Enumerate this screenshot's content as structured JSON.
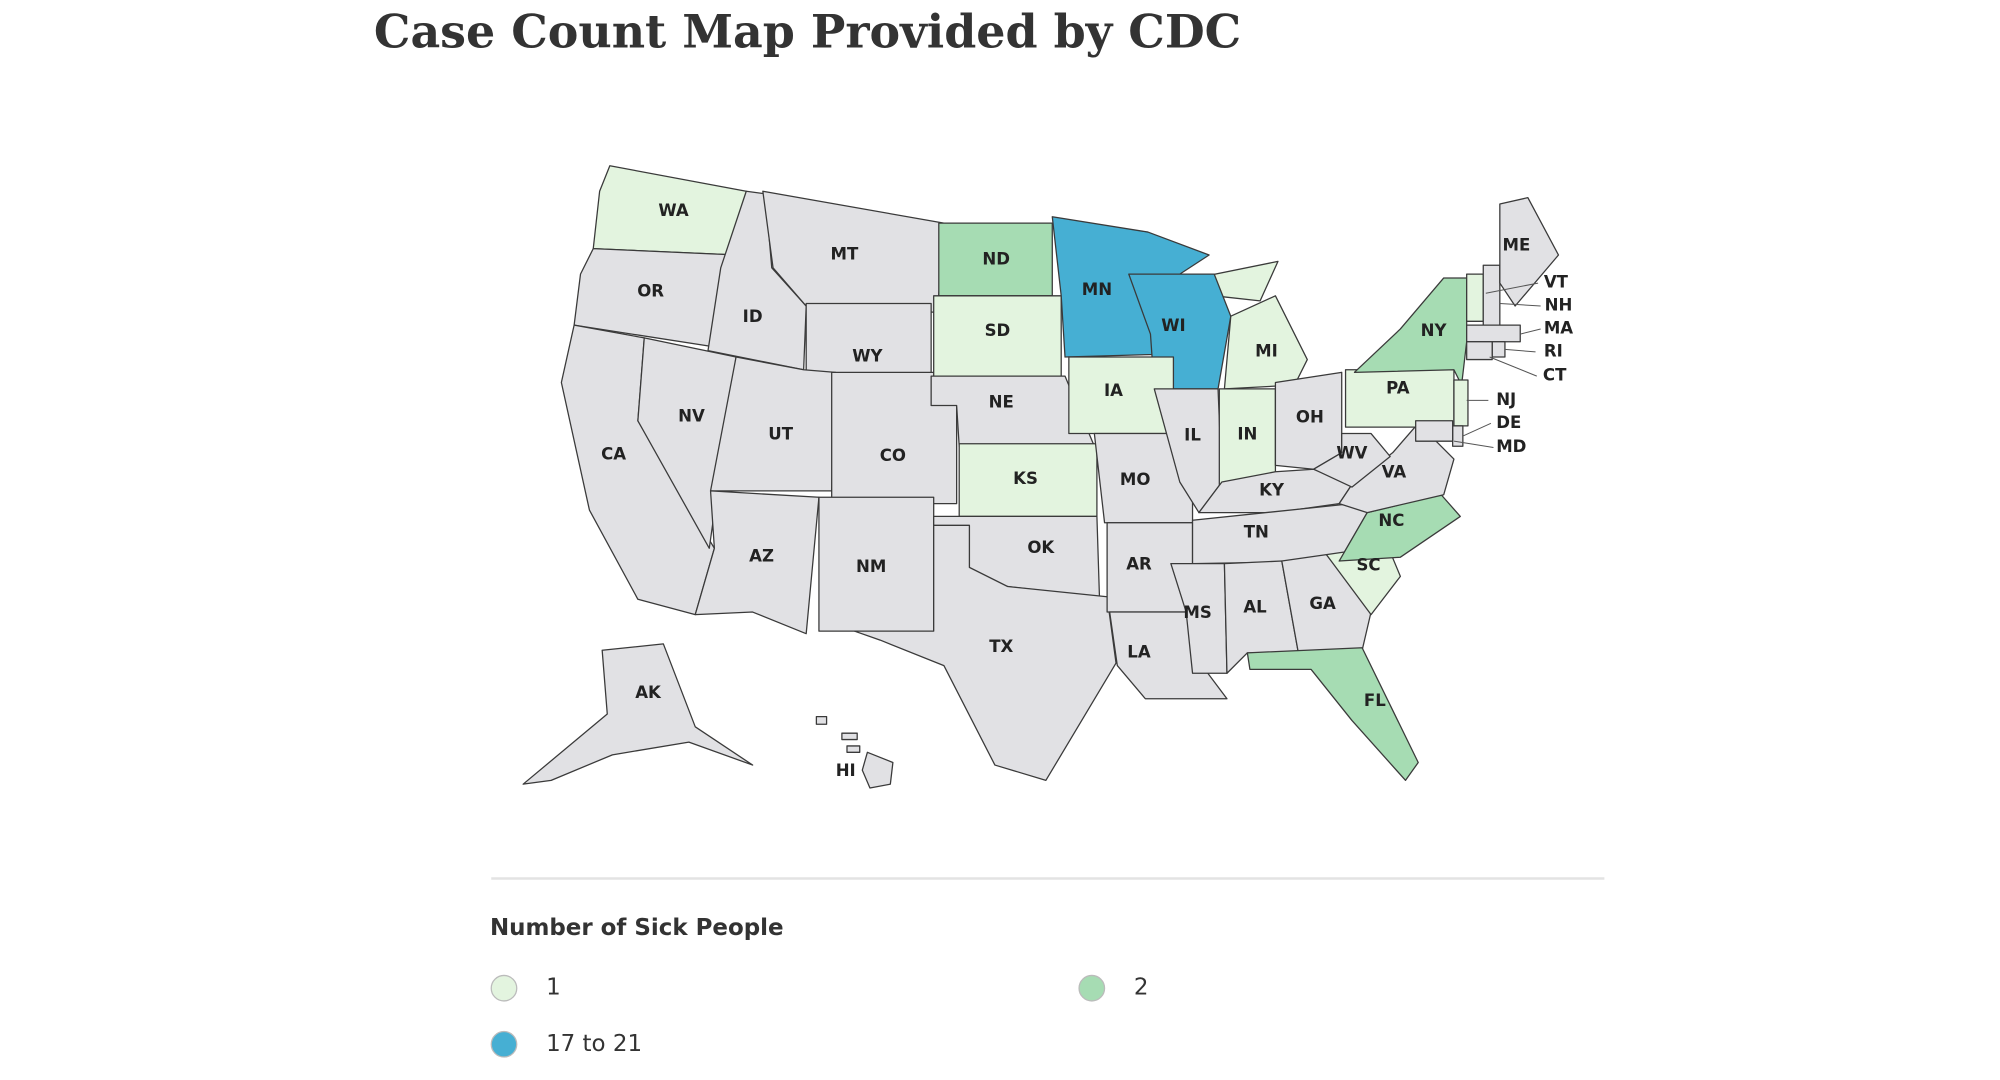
{
  "header": {
    "title": "Case Count Map Provided by CDC"
  },
  "map": {
    "no_data_color": "#e1e1e4",
    "states": [
      "WA",
      "OR",
      "CA",
      "NV",
      "ID",
      "MT",
      "WY",
      "UT",
      "CO",
      "AZ",
      "NM",
      "ND",
      "SD",
      "NE",
      "KS",
      "OK",
      "TX",
      "MN",
      "WI",
      "IA",
      "MO",
      "AR",
      "LA",
      "IL",
      "MI",
      "IN",
      "OH",
      "KY",
      "TN",
      "MS",
      "AL",
      "GA",
      "FL",
      "SC",
      "NC",
      "VA",
      "WV",
      "PA",
      "NY",
      "VT",
      "NH",
      "ME",
      "MA",
      "RI",
      "CT",
      "NJ",
      "DE",
      "MD",
      "AK",
      "HI"
    ]
  },
  "legend": {
    "title": "Number of Sick People",
    "items": [
      {
        "label": "1",
        "color": "#e3f4df",
        "states": [
          "WA",
          "SD",
          "IA",
          "KS",
          "MI",
          "IN",
          "PA",
          "SC",
          "VT",
          "NJ"
        ]
      },
      {
        "label": "2",
        "color": "#a6dcb3",
        "states": [
          "ND",
          "NY",
          "NC",
          "FL"
        ]
      },
      {
        "label": "17 to 21",
        "color": "#46afd3",
        "states": [
          "MN",
          "WI"
        ]
      }
    ]
  }
}
